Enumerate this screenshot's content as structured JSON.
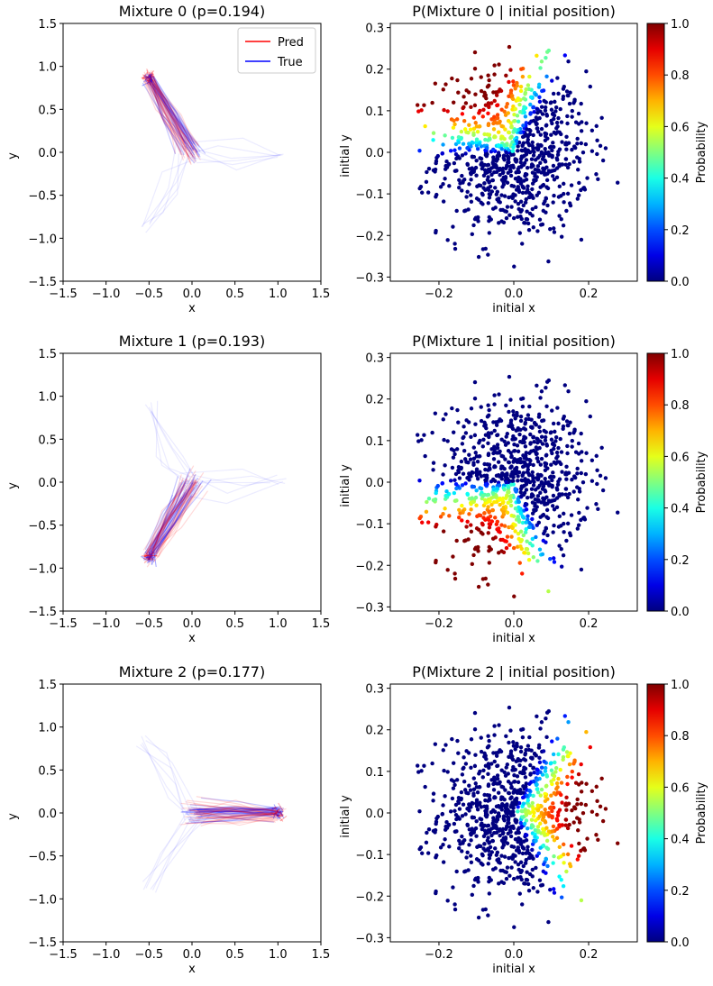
{
  "figure": {
    "background": "#ffffff"
  },
  "colors": {
    "pred": "#ff0000",
    "true": "#0000ff",
    "colormap": "jet"
  },
  "chart_data": [
    {
      "type": "line",
      "title": "Mixture 0 (p=0.194)",
      "xlabel": "x",
      "ylabel": "y",
      "xlim": [
        -1.5,
        1.5
      ],
      "ylim": [
        -1.5,
        1.5
      ],
      "xticks": [
        "−1.5",
        "−1.0",
        "−0.5",
        "0.0",
        "0.5",
        "1.0",
        "1.5"
      ],
      "yticks": [
        "−1.5",
        "−1.0",
        "−0.5",
        "0.0",
        "0.5",
        "1.0",
        "1.5"
      ],
      "legend": {
        "position": "top-right",
        "entries": [
          "Pred",
          "True"
        ]
      },
      "mixture_endpoint": [
        -0.5,
        0.87
      ],
      "series": [
        {
          "name": "Pred",
          "description": "predicted trajectories from origin to cluster",
          "start": [
            0.0,
            0.0
          ],
          "end": [
            -0.5,
            0.87
          ]
        },
        {
          "name": "True",
          "description": "true trajectories",
          "start": [
            0.0,
            0.0
          ],
          "end": [
            -0.5,
            0.87
          ]
        }
      ]
    },
    {
      "type": "scatter",
      "title": "P(Mixture 0 | initial position)",
      "xlabel": "initial x",
      "ylabel": "initial y",
      "xlim": [
        -0.33,
        0.33
      ],
      "ylim": [
        -0.31,
        0.31
      ],
      "xticks": [
        "−0.2",
        "0.0",
        "0.2"
      ],
      "yticks": [
        "−0.3",
        "−0.2",
        "−0.1",
        "0.0",
        "0.1",
        "0.2",
        "0.3"
      ],
      "colorbar": {
        "label": "Probability",
        "min": 0.0,
        "max": 1.0,
        "ticks": [
          "0.0",
          "0.2",
          "0.4",
          "0.6",
          "0.8",
          "1.0"
        ]
      },
      "direction_angle_deg": 120
    },
    {
      "type": "line",
      "title": "Mixture 1 (p=0.193)",
      "xlabel": "x",
      "ylabel": "y",
      "xlim": [
        -1.5,
        1.5
      ],
      "ylim": [
        -1.5,
        1.5
      ],
      "xticks": [
        "−1.5",
        "−1.0",
        "−0.5",
        "0.0",
        "0.5",
        "1.0",
        "1.5"
      ],
      "yticks": [
        "−1.5",
        "−1.0",
        "−0.5",
        "0.0",
        "0.5",
        "1.0",
        "1.5"
      ],
      "mixture_endpoint": [
        -0.5,
        -0.87
      ],
      "series": [
        {
          "name": "Pred",
          "start": [
            0.0,
            0.0
          ],
          "end": [
            -0.5,
            -0.87
          ]
        },
        {
          "name": "True",
          "start": [
            0.0,
            0.0
          ],
          "end": [
            -0.5,
            -0.87
          ]
        }
      ]
    },
    {
      "type": "scatter",
      "title": "P(Mixture 1 | initial position)",
      "xlabel": "initial x",
      "ylabel": "initial y",
      "xlim": [
        -0.33,
        0.33
      ],
      "ylim": [
        -0.31,
        0.31
      ],
      "xticks": [
        "−0.2",
        "0.0",
        "0.2"
      ],
      "yticks": [
        "−0.3",
        "−0.2",
        "−0.1",
        "0.0",
        "0.1",
        "0.2",
        "0.3"
      ],
      "colorbar": {
        "label": "Probability",
        "min": 0.0,
        "max": 1.0,
        "ticks": [
          "0.0",
          "0.2",
          "0.4",
          "0.6",
          "0.8",
          "1.0"
        ]
      },
      "direction_angle_deg": 240
    },
    {
      "type": "line",
      "title": "Mixture 2 (p=0.177)",
      "xlabel": "x",
      "ylabel": "y",
      "xlim": [
        -1.5,
        1.5
      ],
      "ylim": [
        -1.5,
        1.5
      ],
      "xticks": [
        "−1.5",
        "−1.0",
        "−0.5",
        "0.0",
        "0.5",
        "1.0",
        "1.5"
      ],
      "yticks": [
        "−1.5",
        "−1.0",
        "−0.5",
        "0.0",
        "0.5",
        "1.0",
        "1.5"
      ],
      "mixture_endpoint": [
        1.0,
        0.0
      ],
      "series": [
        {
          "name": "Pred",
          "start": [
            0.0,
            0.0
          ],
          "end": [
            1.0,
            0.0
          ]
        },
        {
          "name": "True",
          "start": [
            0.0,
            0.0
          ],
          "end": [
            1.0,
            0.0
          ]
        }
      ]
    },
    {
      "type": "scatter",
      "title": "P(Mixture 2 | initial position)",
      "xlabel": "initial x",
      "ylabel": "initial y",
      "xlim": [
        -0.33,
        0.33
      ],
      "ylim": [
        -0.31,
        0.31
      ],
      "xticks": [
        "−0.2",
        "0.0",
        "0.2"
      ],
      "yticks": [
        "−0.3",
        "−0.2",
        "−0.1",
        "0.0",
        "0.1",
        "0.2",
        "0.3"
      ],
      "colorbar": {
        "label": "Probability",
        "min": 0.0,
        "max": 1.0,
        "ticks": [
          "0.0",
          "0.2",
          "0.4",
          "0.6",
          "0.8",
          "1.0"
        ]
      },
      "direction_angle_deg": 0
    }
  ]
}
